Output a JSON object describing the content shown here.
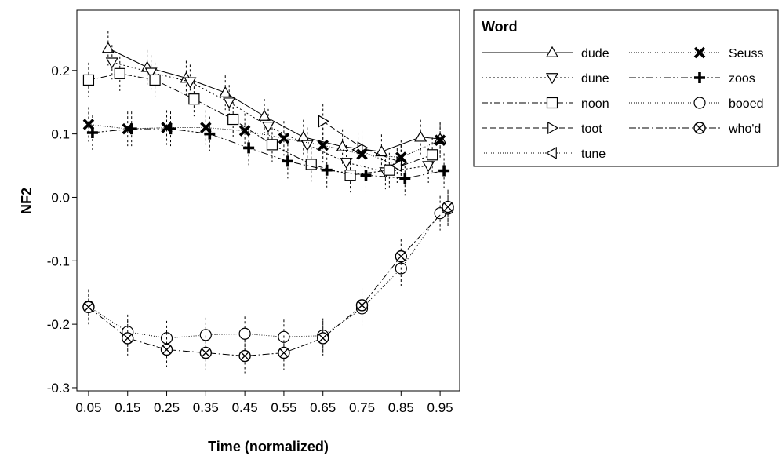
{
  "chart_data": {
    "type": "line",
    "xlabel": "Time (normalized)",
    "ylabel": "NF2",
    "xlim": [
      0.02,
      1.0
    ],
    "ylim": [
      -0.305,
      0.295
    ],
    "x_ticks": [
      "0.05",
      "0.15",
      "0.25",
      "0.35",
      "0.45",
      "0.55",
      "0.65",
      "0.75",
      "0.85",
      "0.95"
    ],
    "y_ticks": [
      "0.2",
      "0.1",
      "0.0",
      "-0.1",
      "-0.2",
      "-0.3"
    ],
    "legend": {
      "title": "Word",
      "placement": "right"
    },
    "series": [
      {
        "name": "dude",
        "color": "#000000",
        "marker": "triangle-up",
        "dash": "",
        "x": [
          0.1,
          0.2,
          0.3,
          0.4,
          0.5,
          0.6,
          0.7,
          0.8,
          0.9,
          0.95
        ],
        "y": [
          0.235,
          0.205,
          0.188,
          0.165,
          0.128,
          0.095,
          0.08,
          0.072,
          0.095,
          0.092
        ]
      },
      {
        "name": "dune",
        "color": "#000000",
        "marker": "triangle-down",
        "dash": "2,3",
        "x": [
          0.11,
          0.21,
          0.31,
          0.41,
          0.51,
          0.61,
          0.71,
          0.81,
          0.92
        ],
        "y": [
          0.213,
          0.197,
          0.182,
          0.15,
          0.112,
          0.083,
          0.055,
          0.04,
          0.05
        ]
      },
      {
        "name": "noon",
        "color": "#000000",
        "marker": "square",
        "dash": "8,3,2,3",
        "x": [
          0.05,
          0.13,
          0.22,
          0.32,
          0.42,
          0.52,
          0.62,
          0.72,
          0.82,
          0.93
        ],
        "y": [
          0.185,
          0.195,
          0.185,
          0.155,
          0.123,
          0.083,
          0.052,
          0.035,
          0.043,
          0.067
        ]
      },
      {
        "name": "toot",
        "color": "#000000",
        "marker": "triangle-right",
        "dash": "7,4",
        "x": [
          0.65,
          0.75,
          0.85
        ],
        "y": [
          0.12,
          0.078,
          0.055
        ]
      },
      {
        "name": "tune",
        "color": "#000000",
        "marker": "triangle-left",
        "dash": "1,2",
        "x": [
          0.74,
          0.84
        ],
        "y": [
          0.075,
          0.05
        ]
      },
      {
        "name": "Seuss",
        "color": "#000000",
        "marker": "x-bold",
        "dash": "1,2",
        "x": [
          0.05,
          0.15,
          0.25,
          0.35,
          0.45,
          0.55,
          0.65,
          0.75,
          0.85,
          0.95
        ],
        "y": [
          0.115,
          0.108,
          0.11,
          0.11,
          0.105,
          0.093,
          0.082,
          0.068,
          0.063,
          0.09
        ]
      },
      {
        "name": "zoos",
        "color": "#000000",
        "marker": "plus-bold",
        "dash": "9,3,2,3,2,3",
        "x": [
          0.06,
          0.16,
          0.26,
          0.36,
          0.46,
          0.56,
          0.66,
          0.76,
          0.86,
          0.96
        ],
        "y": [
          0.102,
          0.108,
          0.108,
          0.1,
          0.078,
          0.057,
          0.043,
          0.035,
          0.03,
          0.042
        ]
      },
      {
        "name": "booed",
        "color": "#000000",
        "marker": "circle",
        "dash": "1,2",
        "x": [
          0.05,
          0.15,
          0.25,
          0.35,
          0.45,
          0.55,
          0.65,
          0.75,
          0.85,
          0.95,
          0.97
        ],
        "y": [
          -0.172,
          -0.212,
          -0.222,
          -0.217,
          -0.215,
          -0.22,
          -0.218,
          -0.175,
          -0.112,
          -0.025,
          -0.018
        ]
      },
      {
        "name": "who'd",
        "color": "#000000",
        "marker": "circle-x",
        "dash": "9,3,2,3",
        "x": [
          0.05,
          0.15,
          0.25,
          0.35,
          0.45,
          0.55,
          0.65,
          0.75,
          0.85,
          0.97
        ],
        "y": [
          -0.173,
          -0.222,
          -0.24,
          -0.245,
          -0.25,
          -0.245,
          -0.222,
          -0.17,
          -0.093,
          -0.015
        ]
      }
    ]
  }
}
